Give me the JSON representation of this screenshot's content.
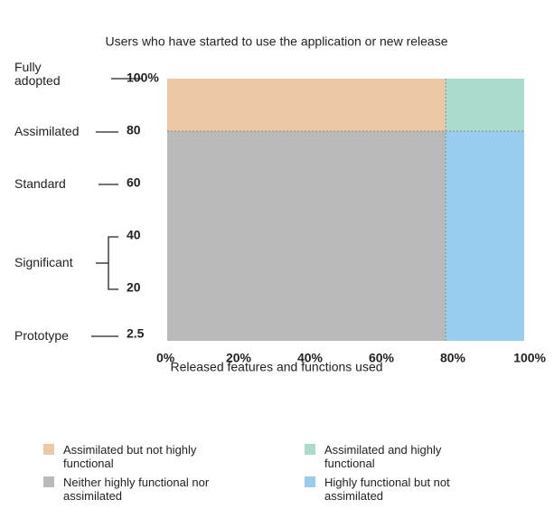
{
  "chart_data": {
    "type": "quadrant",
    "title": "Users who have started to use the application or new release",
    "x_label": "Released features and functions used",
    "xlim": [
      0,
      100
    ],
    "xticks": [
      {
        "value": 0,
        "label": "0%"
      },
      {
        "value": 20,
        "label": "20%"
      },
      {
        "value": 40,
        "label": "40%"
      },
      {
        "value": 60,
        "label": "60%"
      },
      {
        "value": 80,
        "label": "80%"
      },
      {
        "value": 100,
        "label": "100%"
      }
    ],
    "ylim": [
      0,
      100
    ],
    "yticks": [
      2.5,
      20,
      40,
      60,
      80,
      {
        "value": 100,
        "label": "100%"
      }
    ],
    "levels": [
      "Fully adopted",
      "Assimilated",
      "Standard",
      "Significant",
      "Prototype"
    ],
    "x_split": 78,
    "y_split": 80,
    "regions": [
      {
        "name": "Assimilated but not highly functional",
        "color": "#ecc9a4"
      },
      {
        "name": "Assimilated and highly functional",
        "color": "#a9dccc"
      },
      {
        "name": "Neither highly functional nor assimilated",
        "color": "#b9b9b9"
      },
      {
        "name": "Highly functional but not assimilated",
        "color": "#98cdf0"
      }
    ]
  }
}
